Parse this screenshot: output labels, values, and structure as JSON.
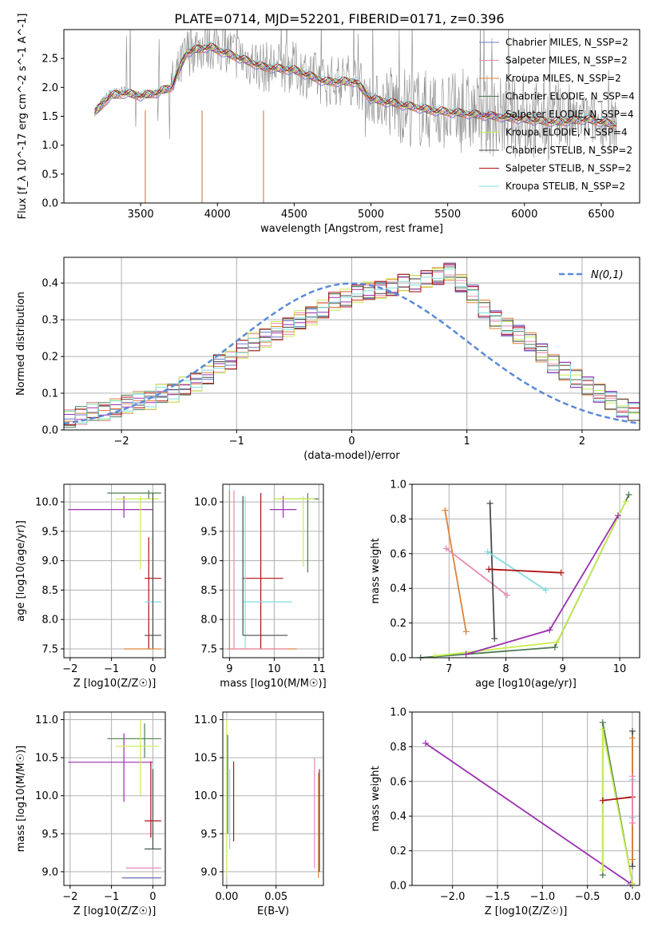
{
  "figure_title": "PLATE=0714, MJD=52201, FIBERID=0171, z=0.396",
  "colors": {
    "chabrier_miles": "#6a78c8",
    "salpeter_miles": "#e88ab0",
    "kroupa_miles": "#e0823a",
    "chabrier_elodie": "#4e7a55",
    "salpeter_elodie": "#9a30b0",
    "kroupa_elodie": "#c8ee50",
    "chabrier_stelib": "#4a4a4a",
    "salpeter_stelib": "#b01010",
    "kroupa_stelib": "#80dce0",
    "normal_curve": "#5b8ad6",
    "grid": "#b0b0b0"
  },
  "chart_data": [
    {
      "id": "spectrum",
      "type": "line",
      "title": "PLATE=0714, MJD=52201, FIBERID=0171, z=0.396",
      "xlabel": "wavelength [Angstrom, rest frame]",
      "ylabel": "Flux [f_λ 10^-17 erg cm^-2 s^-1 A^-1]",
      "xlim": [
        3000,
        6750
      ],
      "ylim": [
        0,
        3.0
      ],
      "xticks": [
        "3500",
        "4000",
        "4500",
        "5000",
        "5500",
        "6000",
        "6500"
      ],
      "yticks": [
        "0.0",
        "0.5",
        "1.0",
        "1.5",
        "2.0",
        "2.5"
      ],
      "grid": false,
      "legend_position": "top-right",
      "legend": [
        "Chabrier MILES, N_SSP=2",
        "Salpeter MILES, N_SSP=2",
        "Kroupa MILES, N_SSP=2",
        "Chabrier ELODIE, N_SSP=4",
        "Salpeter ELODIE, N_SSP=4",
        "Kroupa ELODIE, N_SSP=4",
        "Chabrier STELIB, N_SSP=2",
        "Salpeter STELIB, N_SSP=2",
        "Kroupa STELIB, N_SSP=2"
      ],
      "data_x": [
        3200,
        3300,
        3400,
        3500,
        3600,
        3700,
        3750,
        3800,
        3850,
        3950,
        4100,
        4300,
        4500,
        4700,
        4900,
        5000,
        5200,
        5400,
        5600,
        5800,
        6000,
        6200,
        6400,
        6600
      ],
      "data_y": [
        1.6,
        1.9,
        1.95,
        1.85,
        1.9,
        2.0,
        2.25,
        2.6,
        2.7,
        2.75,
        2.6,
        2.35,
        2.35,
        2.1,
        2.15,
        1.8,
        1.7,
        1.6,
        1.55,
        1.5,
        1.45,
        1.4,
        1.45,
        1.35
      ],
      "model_y": [
        1.55,
        1.85,
        1.9,
        1.85,
        1.9,
        2.0,
        2.3,
        2.6,
        2.65,
        2.7,
        2.55,
        2.35,
        2.3,
        2.1,
        2.1,
        1.8,
        1.7,
        1.6,
        1.55,
        1.5,
        1.45,
        1.4,
        1.45,
        1.35
      ]
    },
    {
      "id": "residuals",
      "type": "step",
      "xlabel": "(data-model)/error",
      "ylabel": "Normed distribution",
      "xlim": [
        -2.5,
        2.5
      ],
      "ylim": [
        0,
        0.47
      ],
      "xticks": [
        "−2",
        "−1",
        "0",
        "1",
        "2"
      ],
      "yticks": [
        "0.0",
        "0.1",
        "0.2",
        "0.3",
        "0.4"
      ],
      "grid": true,
      "legend_position": "top-right",
      "legend": [
        "N(0,1)"
      ],
      "bin_width": 0.1,
      "bins_start": -2.5,
      "heights": [
        0.03,
        0.04,
        0.05,
        0.05,
        0.06,
        0.07,
        0.08,
        0.08,
        0.1,
        0.1,
        0.12,
        0.13,
        0.15,
        0.18,
        0.19,
        0.22,
        0.24,
        0.25,
        0.27,
        0.28,
        0.3,
        0.31,
        0.33,
        0.35,
        0.36,
        0.37,
        0.38,
        0.38,
        0.39,
        0.4,
        0.4,
        0.41,
        0.42,
        0.43,
        0.4,
        0.37,
        0.33,
        0.3,
        0.28,
        0.26,
        0.24,
        0.21,
        0.18,
        0.16,
        0.14,
        0.12,
        0.1,
        0.08,
        0.06,
        0.05
      ]
    },
    {
      "id": "age_vs_Z",
      "type": "errorbar",
      "xlabel": "Z [log10(Z/Z☉)]",
      "ylabel": "age [log10(age/yr)]",
      "xlim": [
        -2.15,
        0.3
      ],
      "ylim": [
        7.35,
        10.3
      ],
      "xticks": [
        "−2",
        "−1",
        "0"
      ],
      "yticks": [
        "7.5",
        "8.0",
        "8.5",
        "9.0",
        "9.5",
        "10.0"
      ],
      "points": [
        {
          "x": -0.7,
          "y": 9.87,
          "xlo": -2.05,
          "xhi": 0.0,
          "ylo": 9.73,
          "yhi": 10.1,
          "c": "salpeter_elodie"
        },
        {
          "x": -0.1,
          "y": 10.15,
          "xlo": -1.1,
          "xhi": 0.2,
          "ylo": 10.05,
          "yhi": 10.2,
          "c": "chabrier_elodie"
        },
        {
          "x": -0.3,
          "y": 10.05,
          "xlo": -0.9,
          "xhi": 0.15,
          "ylo": 8.85,
          "yhi": 10.1,
          "c": "kroupa_elodie"
        },
        {
          "x": -0.1,
          "y": 8.7,
          "xlo": -0.2,
          "xhi": 0.2,
          "ylo": 7.5,
          "yhi": 9.4,
          "c": "salpeter_stelib"
        },
        {
          "x": 0.0,
          "y": 8.3,
          "xlo": -0.2,
          "xhi": 0.2,
          "ylo": 7.5,
          "yhi": 9.5,
          "c": "kroupa_stelib"
        },
        {
          "x": 0.0,
          "y": 7.73,
          "xlo": -0.2,
          "xhi": 0.2,
          "ylo": 7.5,
          "yhi": 10.15,
          "c": "chabrier_stelib"
        },
        {
          "x": -0.2,
          "y": 7.5,
          "xlo": -0.7,
          "xhi": 0.2,
          "ylo": 7.5,
          "yhi": 7.5,
          "c": "kroupa_miles"
        }
      ]
    },
    {
      "id": "age_vs_mass",
      "type": "errorbar",
      "xlabel": "mass [log10(M/M☉)]",
      "ylabel": "",
      "xlim": [
        8.85,
        11.1
      ],
      "ylim": [
        7.35,
        10.3
      ],
      "xticks": [
        "9",
        "10",
        "11"
      ],
      "yticks": [
        "7.5",
        "8.0",
        "8.5",
        "9.0",
        "9.5",
        "10.0"
      ],
      "points": [
        {
          "x": 10.2,
          "y": 9.87,
          "xlo": 9.9,
          "xhi": 10.5,
          "ylo": 9.73,
          "yhi": 10.1,
          "c": "salpeter_elodie"
        },
        {
          "x": 10.75,
          "y": 10.05,
          "xlo": 10.1,
          "xhi": 11.0,
          "ylo": 8.8,
          "yhi": 10.15,
          "c": "chabrier_elodie"
        },
        {
          "x": 10.65,
          "y": 10.05,
          "xlo": 10.0,
          "xhi": 10.9,
          "ylo": 8.9,
          "yhi": 10.1,
          "c": "kroupa_elodie"
        },
        {
          "x": 9.7,
          "y": 8.7,
          "xlo": 9.3,
          "xhi": 10.2,
          "ylo": 7.5,
          "yhi": 10.15,
          "c": "salpeter_stelib"
        },
        {
          "x": 9.35,
          "y": 8.3,
          "xlo": 9.3,
          "xhi": 10.4,
          "ylo": 7.5,
          "yhi": 10.1,
          "c": "kroupa_stelib"
        },
        {
          "x": 9.3,
          "y": 7.73,
          "xlo": 9.3,
          "xhi": 10.3,
          "ylo": 7.73,
          "yhi": 10.1,
          "c": "chabrier_stelib"
        },
        {
          "x": 9.0,
          "y": 7.5,
          "xlo": 8.95,
          "xhi": 10.5,
          "ylo": 7.5,
          "yhi": 10.2,
          "c": "kroupa_miles"
        },
        {
          "x": 9.1,
          "y": 7.5,
          "xlo": 9.0,
          "xhi": 10.3,
          "ylo": 7.5,
          "yhi": 10.2,
          "c": "salpeter_miles"
        }
      ]
    },
    {
      "id": "weight_vs_age",
      "type": "line",
      "xlabel": "age [log10(age/yr)]",
      "ylabel": "mass weight",
      "xlim": [
        6.35,
        10.35
      ],
      "ylim": [
        0,
        1.0
      ],
      "xticks": [
        "7",
        "8",
        "9",
        "10"
      ],
      "yticks": [
        "0.0",
        "0.2",
        "0.4",
        "0.6",
        "0.8",
        "1.0"
      ],
      "series": [
        {
          "c": "kroupa_miles",
          "x": [
            6.93,
            7.3
          ],
          "y": [
            0.85,
            0.15
          ]
        },
        {
          "c": "salpeter_miles",
          "x": [
            6.95,
            8.02
          ],
          "y": [
            0.63,
            0.36
          ]
        },
        {
          "c": "chabrier_stelib",
          "x": [
            7.72,
            7.8
          ],
          "y": [
            0.89,
            0.11
          ]
        },
        {
          "c": "kroupa_stelib",
          "x": [
            7.68,
            8.7
          ],
          "y": [
            0.61,
            0.39
          ]
        },
        {
          "c": "salpeter_stelib",
          "x": [
            7.7,
            8.97
          ],
          "y": [
            0.51,
            0.49
          ]
        },
        {
          "c": "chabrier_elodie",
          "x": [
            6.5,
            8.86,
            10.16
          ],
          "y": [
            0.0,
            0.06,
            0.94
          ]
        },
        {
          "c": "kroupa_elodie",
          "x": [
            6.75,
            8.9,
            10.1
          ],
          "y": [
            0.01,
            0.09,
            0.9
          ]
        },
        {
          "c": "salpeter_elodie",
          "x": [
            7.3,
            8.77,
            9.97
          ],
          "y": [
            0.02,
            0.16,
            0.82
          ]
        }
      ]
    },
    {
      "id": "mass_vs_Z",
      "type": "errorbar",
      "xlabel": "Z [log10(Z/Z☉)]",
      "ylabel": "mass [log10(M/M☉)]",
      "xlim": [
        -2.15,
        0.3
      ],
      "ylim": [
        8.82,
        11.1
      ],
      "xticks": [
        "−2",
        "−1",
        "0"
      ],
      "yticks": [
        "9.0",
        "9.5",
        "10.0",
        "10.5",
        "11.0"
      ],
      "points": [
        {
          "x": -0.7,
          "y": 10.44,
          "xlo": -2.05,
          "xhi": 0.0,
          "ylo": 9.92,
          "yhi": 10.82,
          "c": "salpeter_elodie"
        },
        {
          "x": -0.2,
          "y": 10.75,
          "xlo": -1.1,
          "xhi": 0.2,
          "ylo": 10.5,
          "yhi": 10.95,
          "c": "chabrier_elodie"
        },
        {
          "x": -0.3,
          "y": 10.65,
          "xlo": -0.9,
          "xhi": 0.15,
          "ylo": 10.0,
          "yhi": 11.0,
          "c": "kroupa_elodie"
        },
        {
          "x": -0.05,
          "y": 9.67,
          "xlo": -0.2,
          "xhi": 0.2,
          "ylo": 9.45,
          "yhi": 10.45,
          "c": "salpeter_stelib"
        },
        {
          "x": 0.0,
          "y": 9.3,
          "xlo": -0.2,
          "xhi": 0.2,
          "ylo": 9.3,
          "yhi": 10.4,
          "c": "kroupa_stelib"
        },
        {
          "x": 0.0,
          "y": 9.3,
          "xlo": -0.2,
          "xhi": 0.2,
          "ylo": 9.3,
          "yhi": 10.35,
          "c": "chabrier_stelib"
        },
        {
          "x": -0.1,
          "y": 9.05,
          "xlo": -0.65,
          "xhi": 0.2,
          "ylo": 9.05,
          "yhi": 9.05,
          "c": "salpeter_miles"
        },
        {
          "x": -0.3,
          "y": 8.92,
          "xlo": -0.75,
          "xhi": 0.2,
          "ylo": 8.92,
          "yhi": 8.92,
          "c": "kroupa_miles"
        },
        {
          "x": -0.3,
          "y": 8.92,
          "xlo": -0.75,
          "xhi": 0.2,
          "ylo": 8.92,
          "yhi": 8.92,
          "c": "chabrier_miles"
        }
      ]
    },
    {
      "id": "mass_vs_ebv",
      "type": "errorbar",
      "xlabel": "E(B-V)",
      "ylabel": "",
      "xlim": [
        -0.004,
        0.098
      ],
      "ylim": [
        8.82,
        11.1
      ],
      "xticks": [
        "0.00",
        "0.05"
      ],
      "yticks": [
        "9.0",
        "9.5",
        "10.0",
        "10.5",
        "11.0"
      ],
      "points": [
        {
          "x": 0.0,
          "y": 10.0,
          "xlo": 0.0,
          "xhi": 0.0,
          "ylo": 8.95,
          "yhi": 11.0,
          "c": "kroupa_elodie"
        },
        {
          "x": 0.001,
          "y": 10.1,
          "xlo": 0.001,
          "xhi": 0.001,
          "ylo": 9.5,
          "yhi": 10.8,
          "c": "chabrier_elodie"
        },
        {
          "x": 0.003,
          "y": 9.9,
          "xlo": 0.003,
          "xhi": 0.003,
          "ylo": 9.3,
          "yhi": 10.35,
          "c": "kroupa_stelib"
        },
        {
          "x": 0.007,
          "y": 10.0,
          "xlo": 0.007,
          "xhi": 0.007,
          "ylo": 9.4,
          "yhi": 10.45,
          "c": "salpeter_stelib"
        },
        {
          "x": 0.089,
          "y": 9.8,
          "xlo": 0.089,
          "xhi": 0.089,
          "ylo": 9.05,
          "yhi": 10.5,
          "c": "salpeter_miles"
        },
        {
          "x": 0.093,
          "y": 9.7,
          "xlo": 0.093,
          "xhi": 0.093,
          "ylo": 8.92,
          "yhi": 10.3,
          "c": "kroupa_miles"
        },
        {
          "x": 0.094,
          "y": 9.9,
          "xlo": 0.094,
          "xhi": 0.094,
          "ylo": 9.0,
          "yhi": 10.35,
          "c": "chabrier_stelib"
        }
      ]
    },
    {
      "id": "weight_vs_Z",
      "type": "line",
      "xlabel": "Z [log10(Z/Z☉)]",
      "ylabel": "mass weight",
      "xlim": [
        -2.45,
        0.08
      ],
      "ylim": [
        0,
        1.0
      ],
      "xticks": [
        "−2.0",
        "−1.5",
        "−1.0",
        "−0.5",
        "0.0"
      ],
      "yticks": [
        "0.0",
        "0.2",
        "0.4",
        "0.6",
        "0.8",
        "1.0"
      ],
      "series": [
        {
          "c": "salpeter_elodie",
          "x": [
            -2.3,
            -0.02
          ],
          "y": [
            0.82,
            0.01
          ]
        },
        {
          "c": "chabrier_elodie",
          "x": [
            -0.33,
            -0.33,
            0.0
          ],
          "y": [
            0.06,
            0.94,
            0.01
          ]
        },
        {
          "c": "kroupa_elodie",
          "x": [
            -0.33,
            -0.33,
            0.0
          ],
          "y": [
            0.09,
            0.9,
            0.01
          ]
        },
        {
          "c": "salpeter_stelib",
          "x": [
            -0.33,
            0.0
          ],
          "y": [
            0.49,
            0.51
          ]
        },
        {
          "c": "chabrier_stelib",
          "x": [
            0.0,
            0.0
          ],
          "y": [
            0.11,
            0.89
          ]
        },
        {
          "c": "kroupa_stelib",
          "x": [
            0.0,
            0.0
          ],
          "y": [
            0.39,
            0.61
          ]
        },
        {
          "c": "kroupa_miles",
          "x": [
            0.0,
            0.0
          ],
          "y": [
            0.15,
            0.85
          ]
        },
        {
          "c": "salpeter_miles",
          "x": [
            0.0,
            0.0
          ],
          "y": [
            0.36,
            0.63
          ]
        }
      ]
    }
  ]
}
